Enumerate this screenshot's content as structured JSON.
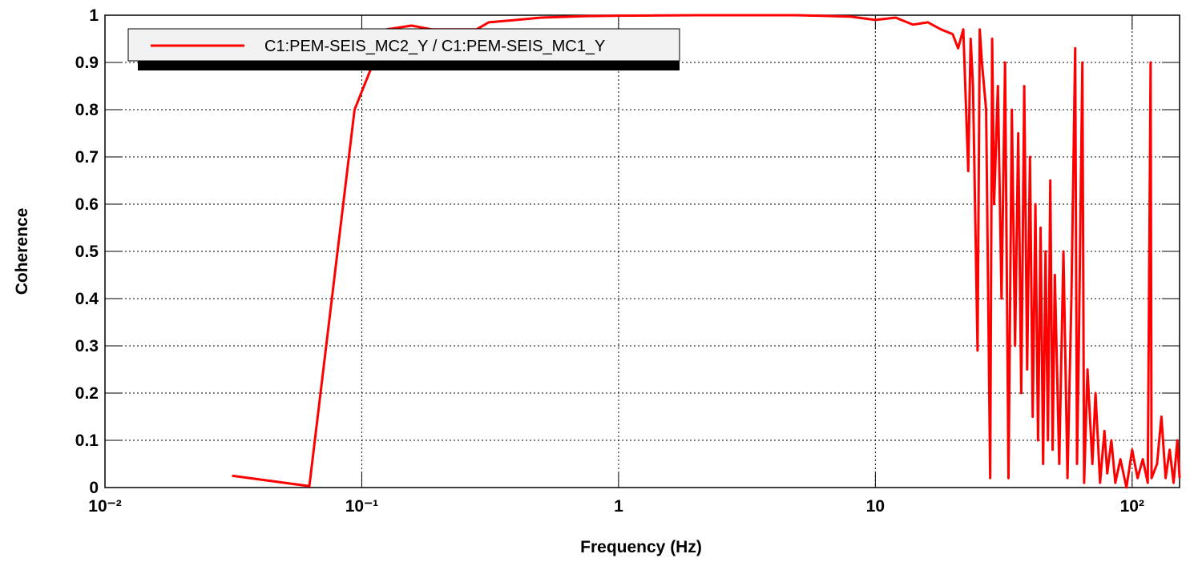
{
  "chart_data": {
    "type": "line",
    "xlabel": "Frequency (Hz)",
    "ylabel": "Coherence",
    "xscale": "log",
    "grid": true,
    "legend": "upper left",
    "xlim": [
      0.01,
      153
    ],
    "ylim": [
      0,
      1
    ],
    "xticks": [
      {
        "value": 0.01,
        "label": "10⁻²"
      },
      {
        "value": 0.1,
        "label": "10⁻¹"
      },
      1,
      10,
      {
        "value": 100,
        "label": "10²"
      }
    ],
    "yticks": [
      0,
      0.1,
      0.2,
      0.3,
      0.4,
      0.5,
      0.6,
      0.7,
      0.8,
      0.9,
      1
    ],
    "x": [
      0.03125,
      0.0625,
      0.09375,
      0.125,
      0.15625,
      0.1875,
      0.28,
      0.3125,
      0.4,
      0.5,
      0.75,
      1,
      2,
      5,
      8,
      10,
      12,
      14,
      16,
      18,
      20,
      21,
      22,
      23,
      23.5,
      24,
      25,
      25.5,
      26,
      27,
      28,
      28.5,
      29,
      30,
      31,
      32,
      33,
      34,
      35,
      36,
      37,
      38,
      39,
      40,
      41,
      42,
      43,
      44,
      45,
      46,
      47,
      48,
      49,
      50,
      52,
      54,
      56,
      58,
      60,
      61,
      62,
      64,
      65,
      67,
      70,
      72,
      75,
      78,
      80,
      83,
      86,
      90,
      95,
      100,
      105,
      110,
      115,
      118,
      119,
      125,
      130,
      135,
      140,
      145,
      150,
      153
    ],
    "series": [
      {
        "name": "C1:PEM-SEIS_MC2_Y / C1:PEM-SEIS_MC1_Y",
        "color": "#ff0000",
        "values": [
          0.025,
          0.003,
          0.8,
          0.97,
          0.978,
          0.97,
          0.97,
          0.985,
          0.99,
          0.995,
          0.998,
          0.999,
          1,
          1,
          0.997,
          0.99,
          0.995,
          0.98,
          0.985,
          0.97,
          0.96,
          0.93,
          0.97,
          0.67,
          0.95,
          0.85,
          0.29,
          0.97,
          0.9,
          0.8,
          0.02,
          0.95,
          0.6,
          0.85,
          0.4,
          0.9,
          0.02,
          0.8,
          0.3,
          0.75,
          0.2,
          0.85,
          0.25,
          0.7,
          0.15,
          0.6,
          0.1,
          0.55,
          0.05,
          0.5,
          0.1,
          0.65,
          0.08,
          0.45,
          0.05,
          0.5,
          0.02,
          0.4,
          0.93,
          0.05,
          0.3,
          0.9,
          0.01,
          0.25,
          0.05,
          0.2,
          0.01,
          0.12,
          0.03,
          0.1,
          0.01,
          0.06,
          0,
          0.08,
          0.02,
          0.06,
          0.01,
          0.9,
          0.02,
          0.05,
          0.15,
          0.02,
          0.08,
          0.01,
          0.1,
          0.02
        ]
      }
    ]
  }
}
